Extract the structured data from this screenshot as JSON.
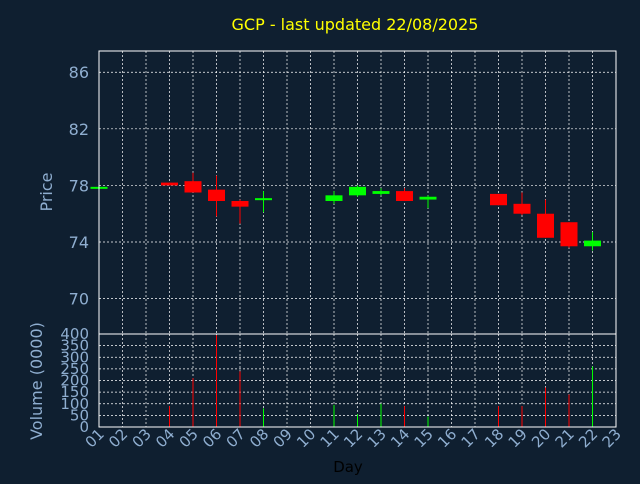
{
  "colors": {
    "background": "#0f1f30",
    "title": "#ffff00",
    "axis_label": "#8faed0",
    "grid": "#ffffff",
    "up": "#00ff00",
    "down": "#ff0000",
    "xlabel": "#000000"
  },
  "chart_data": [
    {
      "type": "candlestick",
      "title": "GCP - last updated 22/08/2025",
      "ylabel": "Price",
      "xlabel": "Day",
      "x_ticks": [
        "01",
        "02",
        "03",
        "04",
        "05",
        "06",
        "07",
        "08",
        "09",
        "10",
        "11",
        "12",
        "13",
        "14",
        "15",
        "16",
        "17",
        "18",
        "19",
        "20",
        "21",
        "22",
        "23"
      ],
      "y_ticks": [
        70,
        74,
        78,
        82,
        86
      ],
      "xlim": [
        1,
        23
      ],
      "ylim": [
        67.5,
        87.5
      ],
      "grid": true,
      "candles": [
        {
          "day": 1,
          "open": 77.9,
          "close": 77.9,
          "high": 77.9,
          "low": 77.9
        },
        {
          "day": 4,
          "open": 78.2,
          "close": 78.0,
          "high": 78.2,
          "low": 78.0
        },
        {
          "day": 5,
          "open": 78.3,
          "close": 77.5,
          "high": 78.9,
          "low": 77.5
        },
        {
          "day": 6,
          "open": 77.7,
          "close": 76.9,
          "high": 78.7,
          "low": 75.8
        },
        {
          "day": 7,
          "open": 76.9,
          "close": 76.5,
          "high": 77.0,
          "low": 75.3
        },
        {
          "day": 8,
          "open": 77.0,
          "close": 77.1,
          "high": 77.6,
          "low": 76.1
        },
        {
          "day": 11,
          "open": 76.9,
          "close": 77.3,
          "high": 77.6,
          "low": 76.7
        },
        {
          "day": 12,
          "open": 77.3,
          "close": 77.9,
          "high": 78.0,
          "low": 77.2
        },
        {
          "day": 13,
          "open": 77.4,
          "close": 77.6,
          "high": 77.8,
          "low": 77.3
        },
        {
          "day": 14,
          "open": 77.6,
          "close": 76.9,
          "high": 77.8,
          "low": 76.9
        },
        {
          "day": 15,
          "open": 77.0,
          "close": 77.2,
          "high": 77.3,
          "low": 76.4
        },
        {
          "day": 18,
          "open": 77.4,
          "close": 76.6,
          "high": 77.4,
          "low": 76.6
        },
        {
          "day": 19,
          "open": 76.7,
          "close": 76.0,
          "high": 77.5,
          "low": 75.9
        },
        {
          "day": 20,
          "open": 76.0,
          "close": 74.3,
          "high": 77.0,
          "low": 74.3
        },
        {
          "day": 21,
          "open": 75.4,
          "close": 73.7,
          "high": 75.4,
          "low": 73.6
        },
        {
          "day": 22,
          "open": 73.7,
          "close": 74.1,
          "high": 74.7,
          "low": 73.4
        }
      ]
    },
    {
      "type": "bar",
      "ylabel": "Volume (0000)",
      "y_ticks": [
        0,
        50,
        100,
        150,
        200,
        250,
        300,
        350,
        400
      ],
      "ylim": [
        0,
        400
      ],
      "grid": true,
      "bars": [
        {
          "day": 4,
          "value": 90,
          "color": "down"
        },
        {
          "day": 5,
          "value": 210,
          "color": "down"
        },
        {
          "day": 6,
          "value": 395,
          "color": "down"
        },
        {
          "day": 7,
          "value": 240,
          "color": "down"
        },
        {
          "day": 8,
          "value": 80,
          "color": "up"
        },
        {
          "day": 11,
          "value": 95,
          "color": "up"
        },
        {
          "day": 12,
          "value": 55,
          "color": "up"
        },
        {
          "day": 13,
          "value": 100,
          "color": "up"
        },
        {
          "day": 14,
          "value": 90,
          "color": "down"
        },
        {
          "day": 15,
          "value": 45,
          "color": "up"
        },
        {
          "day": 18,
          "value": 90,
          "color": "down"
        },
        {
          "day": 19,
          "value": 90,
          "color": "down"
        },
        {
          "day": 20,
          "value": 170,
          "color": "down"
        },
        {
          "day": 21,
          "value": 140,
          "color": "down"
        },
        {
          "day": 22,
          "value": 260,
          "color": "up"
        }
      ]
    }
  ]
}
